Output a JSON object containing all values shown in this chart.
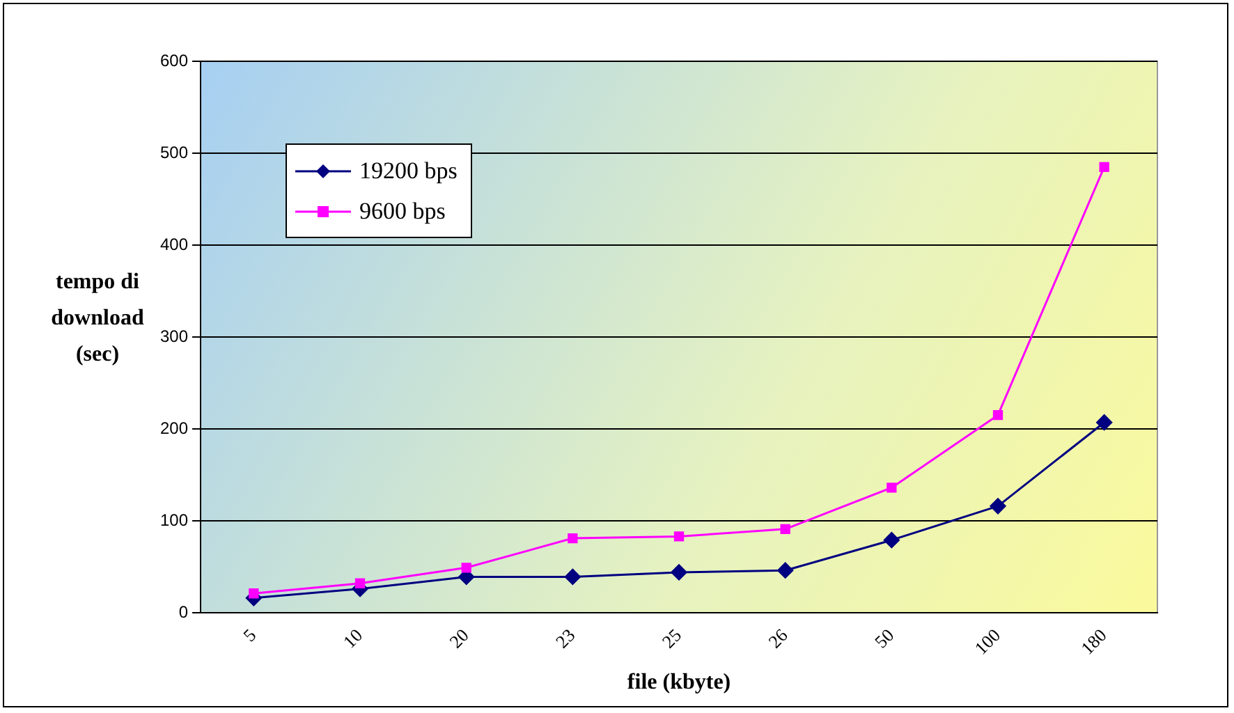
{
  "chart_data": {
    "type": "line",
    "xlabel": "file (kbyte)",
    "ylabel": "tempo di download (sec)",
    "categories": [
      "5",
      "10",
      "20",
      "23",
      "25",
      "26",
      "50",
      "100",
      "180"
    ],
    "ylim": [
      0,
      600
    ],
    "yticks": [
      0,
      100,
      200,
      300,
      400,
      500,
      600
    ],
    "grid": "y",
    "legend": "top left",
    "line_style": "solid",
    "series": [
      {
        "name": "19200 bps",
        "color": "#000080",
        "marker": "diamond",
        "values": [
          16,
          26,
          39,
          39,
          44,
          46,
          79,
          116,
          207
        ]
      },
      {
        "name": "9600 bps",
        "color": "#ff00ff",
        "marker": "square",
        "values": [
          21,
          32,
          49,
          81,
          83,
          91,
          136,
          215,
          485
        ]
      }
    ]
  }
}
